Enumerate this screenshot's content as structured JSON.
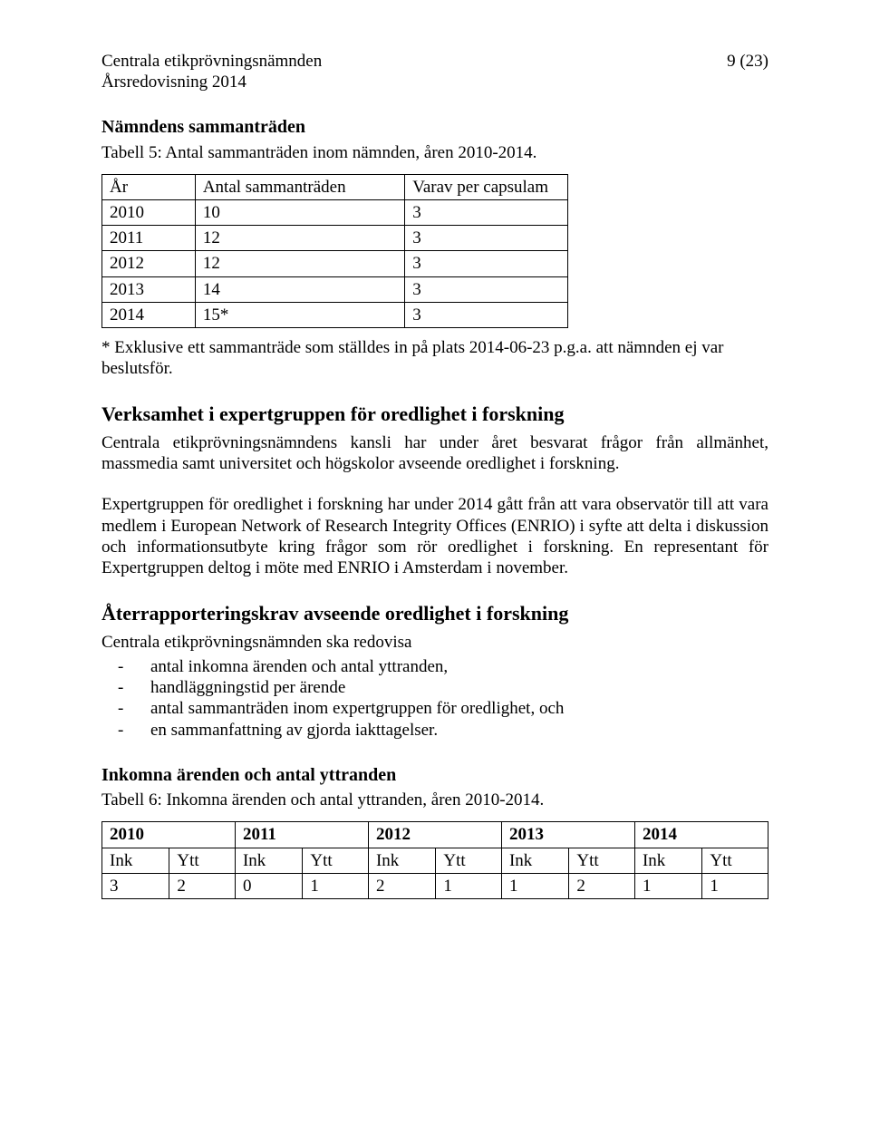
{
  "header": {
    "org": "Centrala etikprövningsnämnden",
    "doc": "Årsredovisning 2014",
    "page": "9 (23)"
  },
  "section1": {
    "title": "Nämndens sammanträden",
    "caption": "Tabell 5: Antal sammanträden inom nämnden, åren 2010-2014."
  },
  "table5": {
    "columns": [
      "År",
      "Antal sammanträden",
      "Varav per capsulam"
    ],
    "rows": [
      [
        "2010",
        "10",
        "3"
      ],
      [
        "2011",
        "12",
        "3"
      ],
      [
        "2012",
        "12",
        "3"
      ],
      [
        "2013",
        "14",
        "3"
      ],
      [
        "2014",
        "15*",
        "3"
      ]
    ],
    "col_widths": [
      "20%",
      "45%",
      "35%"
    ],
    "border_color": "#000000",
    "background_color": "#ffffff"
  },
  "footnote1": "* Exklusive ett sammanträde som ställdes in på plats 2014-06-23 p.g.a. att nämnden ej var beslutsför.",
  "section2": {
    "title": "Verksamhet i expertgruppen för oredlighet i forskning",
    "para1": "Centrala etikprövningsnämndens kansli har under året besvarat frågor från allmänhet, massmedia samt universitet och högskolor avseende oredlighet i forskning.",
    "para2": "Expertgruppen för oredlighet i forskning har under 2014 gått från att vara observatör till att vara medlem i European Network of Research Integrity Offices (ENRIO) i syfte att delta i diskussion och informationsutbyte kring frågor som rör oredlighet i forskning. En representant för Expertgruppen deltog i möte med ENRIO i Amsterdam i november."
  },
  "section3": {
    "title": "Återrapporteringskrav avseende oredlighet i forskning",
    "intro": "Centrala etikprövningsnämnden ska redovisa",
    "bullets": [
      "antal inkomna ärenden och antal yttranden,",
      "handläggningstid per ärende",
      "antal sammanträden inom expertgruppen för oredlighet, och",
      "en sammanfattning av gjorda iakttagelser."
    ]
  },
  "section4": {
    "title": "Inkomna ärenden och antal yttranden",
    "caption": "Tabell 6: Inkomna ärenden och antal yttranden, åren 2010-2014."
  },
  "table6": {
    "years": [
      "2010",
      "2011",
      "2012",
      "2013",
      "2014"
    ],
    "sub": {
      "ink": "Ink",
      "ytt": "Ytt"
    },
    "values": [
      [
        "3",
        "2"
      ],
      [
        "0",
        "1"
      ],
      [
        "2",
        "1"
      ],
      [
        "1",
        "2"
      ],
      [
        "1",
        "1"
      ]
    ],
    "border_color": "#000000",
    "background_color": "#ffffff"
  },
  "typography": {
    "font_family": "Times New Roman",
    "body_fontsize_pt": 12,
    "heading_fontsize_pt": 14,
    "text_color": "#000000",
    "page_background": "#ffffff"
  }
}
